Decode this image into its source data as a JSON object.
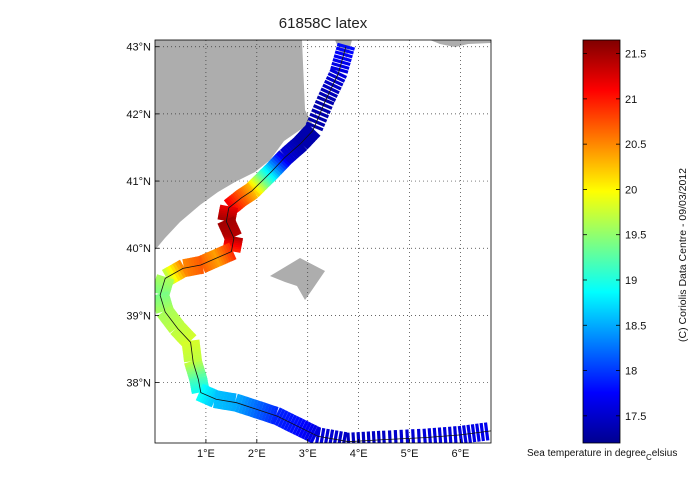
{
  "title": "61858C latex",
  "map": {
    "lon_ticks": [
      {
        "value": 1,
        "label": "1°E"
      },
      {
        "value": 2,
        "label": "2°E"
      },
      {
        "value": 3,
        "label": "3°E"
      },
      {
        "value": 4,
        "label": "4°E"
      },
      {
        "value": 5,
        "label": "5°E"
      },
      {
        "value": 6,
        "label": "6°E"
      }
    ],
    "lat_ticks": [
      {
        "value": 43,
        "label": "43°N"
      },
      {
        "value": 42,
        "label": "42°N"
      },
      {
        "value": 41,
        "label": "41°N"
      },
      {
        "value": 40,
        "label": "40°N"
      },
      {
        "value": 39,
        "label": "39°N"
      },
      {
        "value": 38,
        "label": "38°N"
      }
    ],
    "lon_range": [
      0,
      6.6
    ],
    "lat_range": [
      37.1,
      43.1
    ],
    "grid": "dotted",
    "land_color": "#adadad",
    "trajectory": {
      "lon": [
        3.75,
        3.6,
        3.35,
        3.1,
        2.85,
        2.55,
        2.3,
        2.1,
        1.9,
        1.7,
        1.45,
        1.4,
        1.55,
        1.5,
        1.2,
        0.9,
        0.55,
        0.2,
        0.1,
        0.2,
        0.45,
        0.7,
        0.75,
        0.85,
        0.9,
        1.2,
        1.6,
        2.0,
        2.4,
        2.8,
        3.2,
        3.8,
        4.5,
        5.3,
        6.0,
        6.6
      ],
      "lat": [
        43.0,
        42.6,
        42.2,
        41.75,
        41.55,
        41.35,
        41.15,
        41.0,
        40.85,
        40.75,
        40.6,
        40.4,
        40.15,
        39.95,
        39.85,
        39.75,
        39.7,
        39.55,
        39.3,
        39.05,
        38.8,
        38.6,
        38.3,
        38.05,
        37.85,
        37.75,
        37.7,
        37.6,
        37.5,
        37.35,
        37.2,
        37.12,
        37.15,
        37.18,
        37.22,
        37.28
      ],
      "temperature": [
        17.8,
        17.6,
        17.4,
        17.4,
        17.4,
        17.6,
        18.6,
        19.4,
        20.3,
        20.7,
        21.2,
        21.5,
        21.4,
        20.9,
        20.4,
        20.7,
        20.5,
        19.6,
        19.4,
        19.6,
        19.7,
        19.8,
        19.7,
        19.2,
        18.9,
        18.6,
        18.5,
        18.2,
        17.9,
        17.8,
        17.6,
        17.5,
        17.5,
        17.6,
        17.6,
        17.7
      ]
    }
  },
  "colorbar": {
    "min": 17.2,
    "max": 21.65,
    "ticks": [
      {
        "value": 17.5,
        "label": "17.5"
      },
      {
        "value": 18,
        "label": "18"
      },
      {
        "value": 18.5,
        "label": "18.5"
      },
      {
        "value": 19,
        "label": "19"
      },
      {
        "value": 19.5,
        "label": "19.5"
      },
      {
        "value": 20,
        "label": "20"
      },
      {
        "value": 20.5,
        "label": "20.5"
      },
      {
        "value": 21,
        "label": "21"
      },
      {
        "value": 21.5,
        "label": "21.5"
      }
    ],
    "label_main": "Sea temperature in degree",
    "label_sub": "C",
    "label_tail": "elsius"
  },
  "credit": "(C) Coriolis Data Centre - 09/03/2012"
}
